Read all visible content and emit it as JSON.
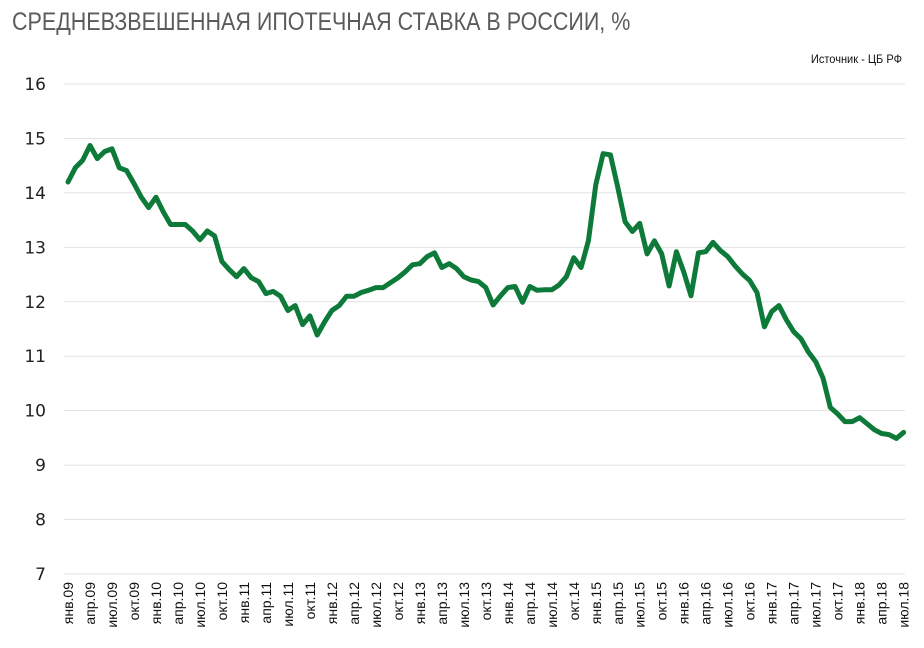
{
  "header": {
    "title": "СРЕДНЕВЗВЕШЕННАЯ ИПОТЕЧНАЯ СТАВКА В РОССИИ, %",
    "source": "Источник  - ЦБ РФ"
  },
  "colors": {
    "line": "#0e7a3a",
    "grid": "#e2e2e2",
    "title": "#5b5b5b"
  },
  "chart_data": {
    "type": "line",
    "title": "СРЕДНЕВЗВЕШЕННАЯ ИПОТЕЧНАЯ СТАВКА В РОССИИ, %",
    "source": "Источник - ЦБ РФ",
    "xlabel": "",
    "ylabel": "%",
    "ylim": [
      7,
      16
    ],
    "yticks": [
      16,
      15,
      14,
      13,
      12,
      11,
      10,
      9,
      8,
      7
    ],
    "grid": true,
    "legend": null,
    "x_tick_labels": [
      "янв.09",
      "апр.09",
      "июл.09",
      "окт.09",
      "янв.10",
      "апр.10",
      "июл.10",
      "окт.10",
      "янв.11",
      "апр.11",
      "июл.11",
      "окт.11",
      "янв.12",
      "апр.12",
      "июл.12",
      "окт.12",
      "янв.13",
      "апр.13",
      "июл.13",
      "окт.13",
      "янв.14",
      "апр.14",
      "июл.14",
      "окт.14",
      "янв.15",
      "апр.15",
      "июл.15",
      "окт.15",
      "янв.16",
      "апр.16",
      "июл.16",
      "окт.16",
      "янв.17",
      "апр.17",
      "июл.17",
      "окт.17",
      "янв.18",
      "апр.18",
      "июл.18"
    ],
    "x_start": "янв.09",
    "x_frequency": "monthly",
    "series": [
      {
        "name": "Средневзвешенная ипотечная ставка",
        "values": [
          14.2,
          14.46,
          14.6,
          14.87,
          14.63,
          14.76,
          14.81,
          14.46,
          14.41,
          14.17,
          13.92,
          13.73,
          13.92,
          13.65,
          13.42,
          13.42,
          13.42,
          13.3,
          13.14,
          13.3,
          13.21,
          12.74,
          12.59,
          12.46,
          12.61,
          12.44,
          12.37,
          12.15,
          12.19,
          12.1,
          11.84,
          11.93,
          11.58,
          11.74,
          11.39,
          11.63,
          11.84,
          11.93,
          12.1,
          12.1,
          12.17,
          12.21,
          12.26,
          12.26,
          12.35,
          12.44,
          12.55,
          12.68,
          12.7,
          12.83,
          12.9,
          12.63,
          12.7,
          12.61,
          12.46,
          12.4,
          12.37,
          12.26,
          11.94,
          12.11,
          12.26,
          12.28,
          11.99,
          12.28,
          12.21,
          12.22,
          12.22,
          12.31,
          12.46,
          12.81,
          12.63,
          13.12,
          14.15,
          14.72,
          14.7,
          14.1,
          13.47,
          13.29,
          13.44,
          12.88,
          13.12,
          12.88,
          12.29,
          12.92,
          12.55,
          12.11,
          12.9,
          12.92,
          13.09,
          12.94,
          12.83,
          12.66,
          12.51,
          12.39,
          12.17,
          11.54,
          11.82,
          11.93,
          11.67,
          11.45,
          11.32,
          11.08,
          10.9,
          10.6,
          10.06,
          9.94,
          9.8,
          9.8,
          9.87,
          9.76,
          9.65,
          9.58,
          9.56,
          9.49,
          9.6
        ]
      }
    ]
  }
}
